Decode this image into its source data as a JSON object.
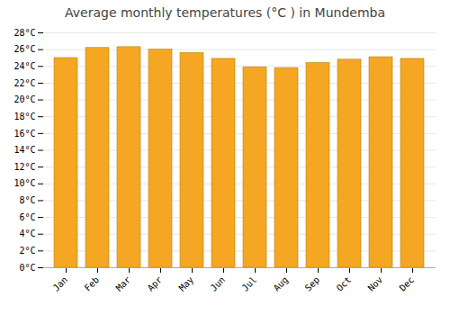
{
  "chart_data": {
    "type": "bar",
    "title": "Average monthly temperatures (°C ) in Mundemba",
    "categories": [
      "Jan",
      "Feb",
      "Mar",
      "Apr",
      "May",
      "Jun",
      "Jul",
      "Aug",
      "Sep",
      "Oct",
      "Nov",
      "Dec"
    ],
    "values": [
      25.0,
      26.2,
      26.3,
      26.0,
      25.6,
      24.9,
      23.9,
      23.8,
      24.4,
      24.8,
      25.1,
      24.9
    ],
    "color": "#F5A623",
    "ylim": [
      0,
      28
    ],
    "yticks": [
      {
        "value": 0,
        "label": "0°C"
      },
      {
        "value": 2,
        "label": "2°C"
      },
      {
        "value": 4,
        "label": "4°C"
      },
      {
        "value": 6,
        "label": "6°C"
      },
      {
        "value": 8,
        "label": "8°C"
      },
      {
        "value": 10,
        "label": "10°C"
      },
      {
        "value": 12,
        "label": "12°C"
      },
      {
        "value": 14,
        "label": "14°C"
      },
      {
        "value": 16,
        "label": "16°C"
      },
      {
        "value": 18,
        "label": "18°C"
      },
      {
        "value": 20,
        "label": "20°C"
      },
      {
        "value": 22,
        "label": "22°C"
      },
      {
        "value": 24,
        "label": "24°C"
      },
      {
        "value": 26,
        "label": "26°C"
      },
      {
        "value": 28,
        "label": "28°C"
      }
    ],
    "grid": true
  }
}
